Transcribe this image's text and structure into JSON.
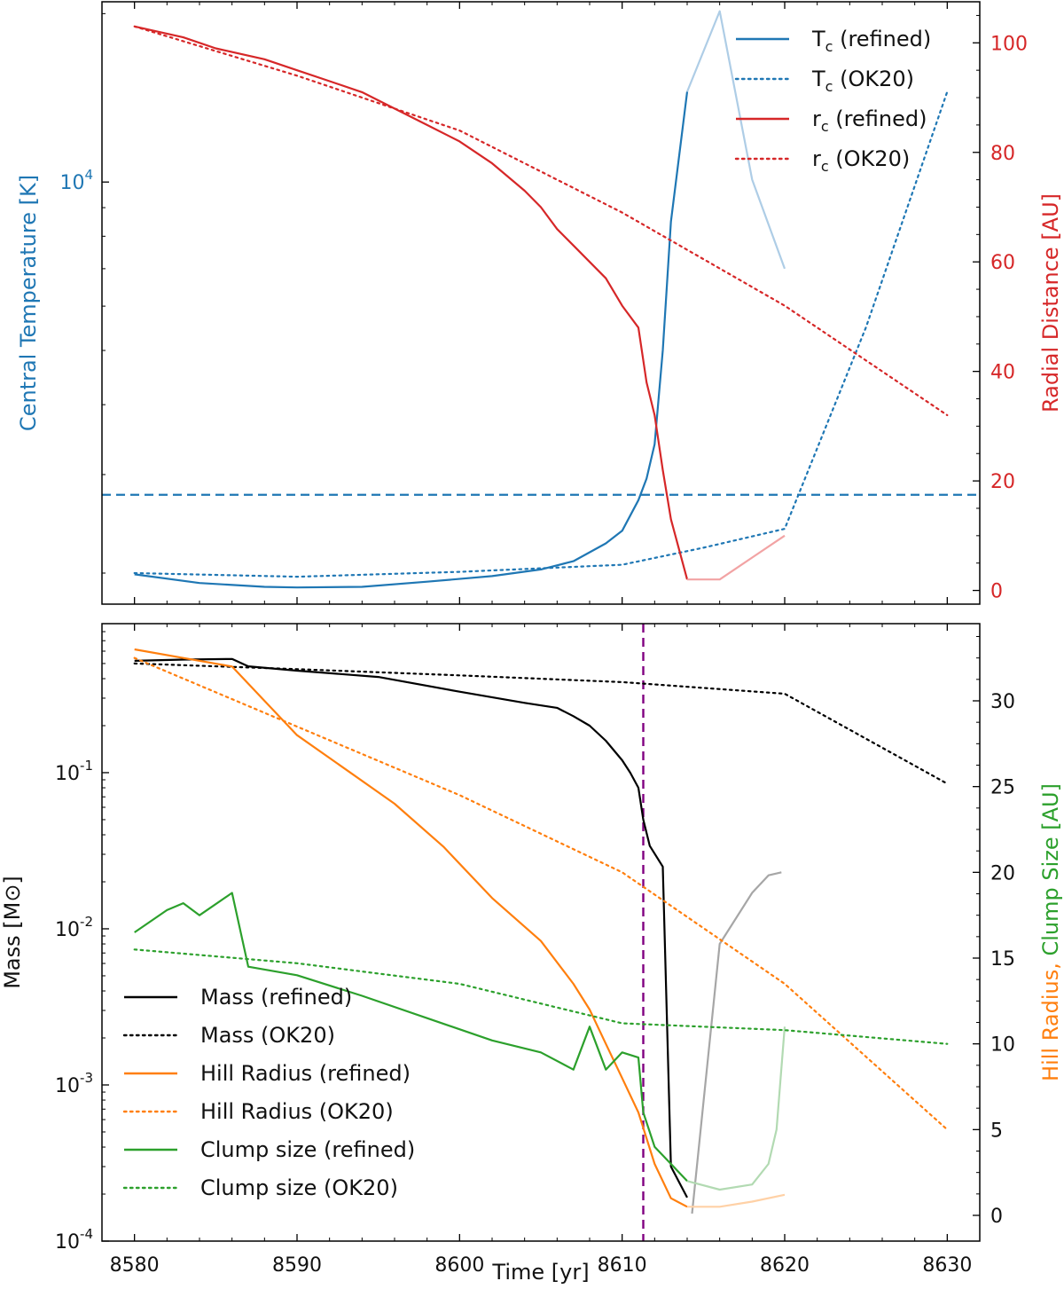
{
  "colors": {
    "blue": "#1f77b4",
    "red": "#d62728",
    "orange": "#ff7f0e",
    "green": "#2ca02c",
    "black": "#000000",
    "purple": "#800080",
    "lightblue": "#aecde6",
    "lightred": "#f2a3a4",
    "lightorange": "#ffd1a6",
    "lightgreen": "#b2dab2",
    "gray": "#a6a6a6"
  },
  "chart_data": [
    {
      "type": "line",
      "xlim": [
        8578,
        8632
      ],
      "xticks": [
        8580,
        8590,
        8600,
        8610,
        8620,
        8630
      ],
      "left_axis": {
        "label": "Central Temperature [K]",
        "scale": "log",
        "range": [
          1760,
          21000
        ],
        "major_ticks": [
          {
            "value": 10000,
            "label": "10^4"
          }
        ],
        "minor_ticks": [
          2000,
          3000,
          4000,
          5000,
          6000,
          7000,
          8000,
          9000,
          20000
        ]
      },
      "right_axis": {
        "label": "Radial Distance [AU]",
        "scale": "linear",
        "range": [
          -2.5,
          107.5
        ],
        "ticks": [
          0,
          20,
          40,
          60,
          80,
          100
        ]
      },
      "hline": {
        "axis": "left",
        "value": 2760,
        "style": "dashed",
        "color": "#1f77b4"
      },
      "series": [
        {
          "name": "T_c (refined)",
          "axis": "left",
          "style": "solid",
          "color": "#1f77b4",
          "x": [
            8580,
            8584,
            8588,
            8590,
            8594,
            8598,
            8602,
            8605,
            8607,
            8609,
            8610,
            8611,
            8611.5,
            8612,
            8612.5,
            8613,
            8614
          ],
          "y": [
            1990,
            1920,
            1890,
            1885,
            1890,
            1930,
            1975,
            2030,
            2100,
            2260,
            2380,
            2700,
            2950,
            3400,
            5000,
            8500,
            14500
          ]
        },
        {
          "name": "T_c (refined) tail",
          "axis": "left",
          "style": "solid",
          "color": "#aecde6",
          "legend": false,
          "x": [
            8614,
            8616,
            8618,
            8620
          ],
          "y": [
            14500,
            20200,
            10100,
            7000
          ]
        },
        {
          "name": "T_c (OK20)",
          "axis": "left",
          "style": "dotted",
          "color": "#1f77b4",
          "x": [
            8580,
            8590,
            8600,
            8610,
            8615,
            8620,
            8625,
            8630
          ],
          "y": [
            2000,
            1970,
            2010,
            2070,
            2220,
            2400,
            5500,
            14500
          ]
        },
        {
          "name": "r_c (refined)",
          "axis": "right",
          "style": "solid",
          "color": "#d62728",
          "x": [
            8580,
            8583,
            8585,
            8588,
            8590,
            8592,
            8594,
            8596,
            8598,
            8600,
            8602,
            8604,
            8605,
            8606,
            8607,
            8608,
            8609,
            8610,
            8611,
            8611.5,
            8612,
            8612.5,
            8613,
            8614
          ],
          "y": [
            103,
            101,
            99,
            97,
            95,
            93,
            91,
            88,
            85,
            82,
            78,
            73,
            70,
            66,
            63,
            60,
            57,
            52,
            48,
            38,
            32,
            22,
            13,
            2
          ]
        },
        {
          "name": "r_c (refined) tail",
          "axis": "right",
          "style": "solid",
          "color": "#f2a3a4",
          "legend": false,
          "x": [
            8614,
            8616,
            8618,
            8620
          ],
          "y": [
            2,
            2,
            6,
            10
          ]
        },
        {
          "name": "r_c (OK20)",
          "axis": "right",
          "style": "dotted",
          "color": "#d62728",
          "x": [
            8580,
            8590,
            8600,
            8610,
            8620,
            8630
          ],
          "y": [
            103,
            94,
            84,
            69,
            52,
            32
          ]
        }
      ],
      "legend_placement": "top-right",
      "legend": [
        {
          "label": "T",
          "sub": "c",
          "rest": " (refined)",
          "style": "solid",
          "color": "#1f77b4"
        },
        {
          "label": "T",
          "sub": "c",
          "rest": " (OK20)",
          "style": "dotted",
          "color": "#1f77b4"
        },
        {
          "label": "r",
          "sub": "c",
          "rest": " (refined)",
          "style": "solid",
          "color": "#d62728"
        },
        {
          "label": "r",
          "sub": "c",
          "rest": " (OK20)",
          "style": "dotted",
          "color": "#d62728"
        }
      ]
    },
    {
      "type": "line",
      "xlim": [
        8578,
        8632
      ],
      "xlabel": "Time [yr]",
      "xticks": [
        8580,
        8590,
        8600,
        8610,
        8620,
        8630
      ],
      "left_axis": {
        "label": "Mass [M⊙]",
        "scale": "log",
        "range": [
          0.0001,
          0.9
        ],
        "major_ticks": [
          {
            "value": 0.0001,
            "label": "10^-4"
          },
          {
            "value": 0.001,
            "label": "10^-3"
          },
          {
            "value": 0.01,
            "label": "10^-2"
          },
          {
            "value": 0.1,
            "label": "10^-1"
          }
        ]
      },
      "right_axis": {
        "label_parts": [
          {
            "text": "Hill Radius, ",
            "color": "#ff7f0e"
          },
          {
            "text": "Clump Size [AU]",
            "color": "#2ca02c"
          }
        ],
        "scale": "linear",
        "range": [
          -1.5,
          34.5
        ],
        "ticks": [
          0,
          5,
          10,
          15,
          20,
          25,
          30
        ]
      },
      "vline": {
        "value": 8611.3,
        "style": "dashed",
        "color": "#800080"
      },
      "series": [
        {
          "name": "Mass (refined)",
          "axis": "left",
          "style": "solid",
          "color": "#000000",
          "x": [
            8580,
            8583,
            8586,
            8587,
            8590,
            8595,
            8600,
            8604,
            8606,
            8607,
            8608,
            8609,
            8610,
            8610.5,
            8611,
            8611.3,
            8611.7,
            8612.5,
            8613,
            8614
          ],
          "y": [
            0.52,
            0.53,
            0.535,
            0.48,
            0.45,
            0.41,
            0.33,
            0.28,
            0.26,
            0.23,
            0.2,
            0.16,
            0.12,
            0.1,
            0.08,
            0.05,
            0.034,
            0.025,
            0.0003,
            0.00019
          ]
        },
        {
          "name": "Mass (refined) tail",
          "axis": "left",
          "style": "solid",
          "color": "#a6a6a6",
          "legend": false,
          "x": [
            8614.3,
            8616,
            8618,
            8619,
            8619.8
          ],
          "y": [
            0.00015,
            0.008,
            0.017,
            0.022,
            0.023
          ]
        },
        {
          "name": "Mass (OK20)",
          "axis": "left",
          "style": "dotted",
          "color": "#000000",
          "x": [
            8580,
            8590,
            8600,
            8610,
            8620,
            8630
          ],
          "y": [
            0.5,
            0.46,
            0.42,
            0.38,
            0.32,
            0.085
          ]
        },
        {
          "name": "Hill Radius (refined)",
          "axis": "right",
          "style": "solid",
          "color": "#ff7f0e",
          "x": [
            8580,
            8583,
            8586,
            8588,
            8590,
            8593,
            8596,
            8599,
            8602,
            8605,
            8607,
            8608,
            8609,
            8610,
            8611,
            8612,
            8613,
            8614
          ],
          "y": [
            33,
            32.5,
            32,
            30,
            28,
            26,
            24,
            21.5,
            18.5,
            16,
            13.5,
            12,
            10,
            8,
            6,
            3,
            1,
            0.5
          ]
        },
        {
          "name": "Hill Radius (refined) tail",
          "axis": "right",
          "style": "solid",
          "color": "#ffd1a6",
          "legend": false,
          "x": [
            8614,
            8616,
            8618,
            8620
          ],
          "y": [
            0.5,
            0.5,
            0.8,
            1.2
          ]
        },
        {
          "name": "Hill Radius (OK20)",
          "axis": "right",
          "style": "dotted",
          "color": "#ff7f0e",
          "x": [
            8580,
            8590,
            8600,
            8610,
            8620,
            8630
          ],
          "y": [
            32.5,
            28.5,
            24.5,
            20,
            13.5,
            5
          ]
        },
        {
          "name": "Clump size (refined)",
          "axis": "right",
          "style": "solid",
          "color": "#2ca02c",
          "x": [
            8580,
            8582,
            8583,
            8584,
            8586,
            8587,
            8590,
            8594,
            8598,
            8602,
            8605,
            8607,
            8608,
            8609,
            8610,
            8611,
            8611.3,
            8612,
            8613,
            8614
          ],
          "y": [
            16.5,
            17.8,
            18.2,
            17.5,
            18.8,
            14.5,
            14,
            12.8,
            11.5,
            10.2,
            9.5,
            8.5,
            11,
            8.5,
            9.5,
            9.2,
            6,
            4,
            3,
            2
          ]
        },
        {
          "name": "Clump size (refined) tail",
          "axis": "right",
          "style": "solid",
          "color": "#b2dab2",
          "legend": false,
          "x": [
            8614,
            8616,
            8618,
            8619,
            8619.5,
            8620
          ],
          "y": [
            2,
            1.5,
            1.8,
            3,
            5,
            11
          ]
        },
        {
          "name": "Clump size (OK20)",
          "axis": "right",
          "style": "dotted",
          "color": "#2ca02c",
          "x": [
            8580,
            8590,
            8600,
            8610,
            8620,
            8630
          ],
          "y": [
            15.5,
            14.7,
            13.5,
            11.2,
            10.8,
            10
          ]
        }
      ],
      "legend_placement": "lower-left",
      "legend": [
        {
          "label": "Mass (refined)",
          "style": "solid",
          "color": "#000000"
        },
        {
          "label": "Mass (OK20)",
          "style": "dotted",
          "color": "#000000"
        },
        {
          "label": "Hill Radius (refined)",
          "style": "solid",
          "color": "#ff7f0e"
        },
        {
          "label": "Hill Radius (OK20)",
          "style": "dotted",
          "color": "#ff7f0e"
        },
        {
          "label": "Clump size (refined)",
          "style": "solid",
          "color": "#2ca02c"
        },
        {
          "label": "Clump size (OK20)",
          "style": "dotted",
          "color": "#2ca02c"
        }
      ]
    }
  ]
}
